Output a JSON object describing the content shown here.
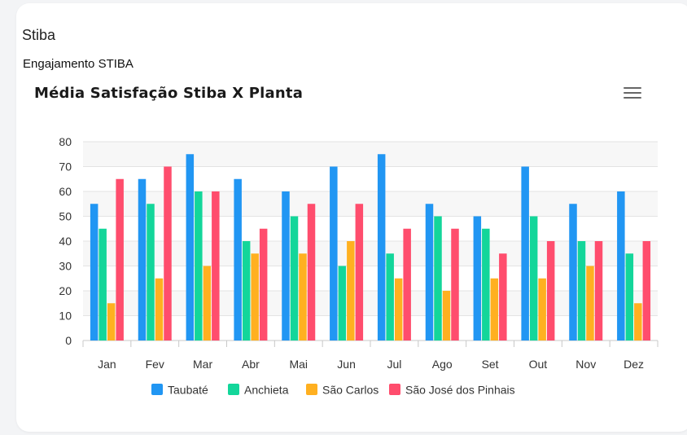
{
  "card": {
    "title": "Stiba",
    "subtitle": "Engajamento STIBA"
  },
  "colors": {
    "Taubaté": "#2196f3",
    "Anchieta": "#13d69a",
    "São Carlos": "#ffb020",
    "São José dos Pinhais": "#ff4d6d"
  },
  "chart_data": {
    "type": "bar",
    "title": "Média Satisfação Stiba X Planta",
    "xlabel": "",
    "ylabel": "",
    "ylim": [
      0,
      80
    ],
    "yticks": [
      0,
      10,
      20,
      30,
      40,
      50,
      60,
      70,
      80
    ],
    "grid": true,
    "legend": "bottom",
    "categories": [
      "Jan",
      "Fev",
      "Mar",
      "Abr",
      "Mai",
      "Jun",
      "Jul",
      "Ago",
      "Set",
      "Out",
      "Nov",
      "Dez"
    ],
    "series": [
      {
        "name": "Taubaté",
        "values": [
          55,
          65,
          75,
          65,
          60,
          70,
          75,
          55,
          50,
          70,
          55,
          60
        ]
      },
      {
        "name": "Anchieta",
        "values": [
          45,
          55,
          60,
          40,
          50,
          30,
          35,
          50,
          45,
          50,
          40,
          35
        ]
      },
      {
        "name": "São Carlos",
        "values": [
          15,
          25,
          30,
          35,
          35,
          40,
          25,
          20,
          25,
          25,
          30,
          15
        ]
      },
      {
        "name": "São José dos Pinhais",
        "values": [
          65,
          70,
          60,
          45,
          55,
          55,
          45,
          45,
          35,
          40,
          40,
          40
        ]
      }
    ]
  }
}
